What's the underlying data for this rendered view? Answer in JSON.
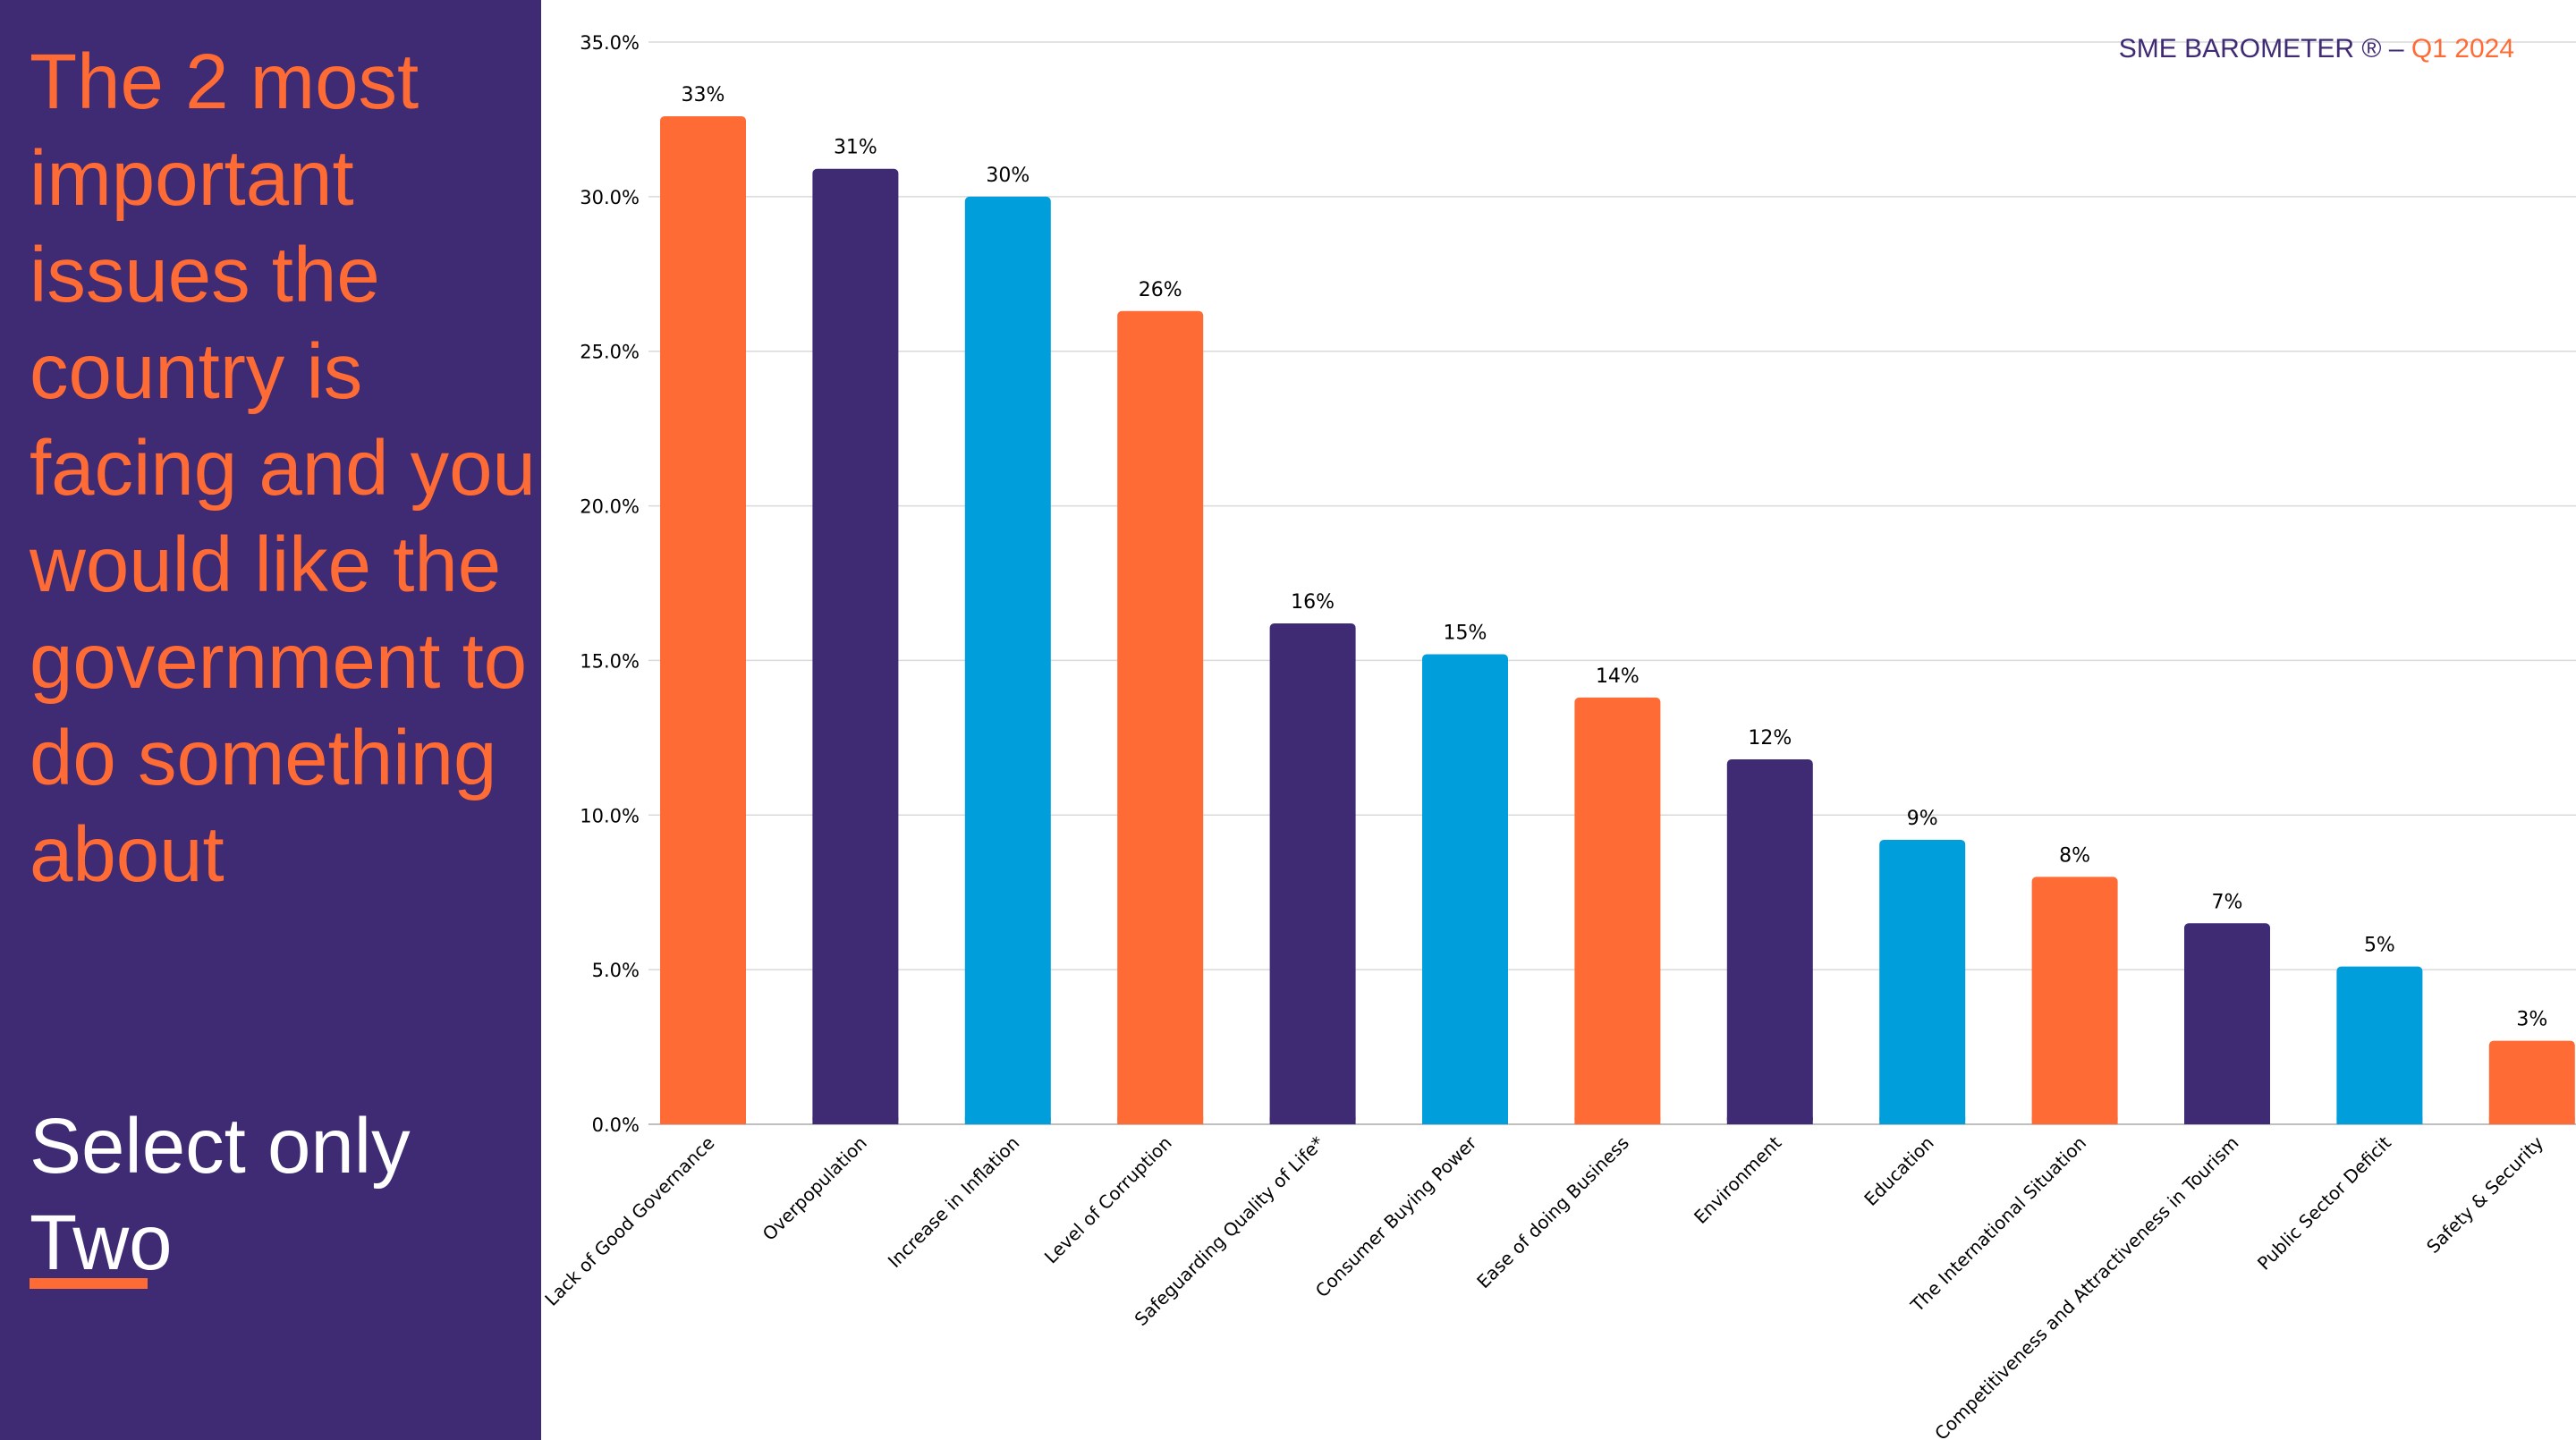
{
  "sidebar": {
    "question": "The 2 most important issues the country is facing and you would like the government to do something about",
    "instruction_line1": "Select only",
    "instruction_line2": "Two"
  },
  "brand": {
    "name": "SME BAROMETER ®",
    "separator": "–",
    "period": "Q1 2024"
  },
  "colors": {
    "panel": "#3F2A74",
    "orange": "#FF6B35",
    "purple": "#3F2A74",
    "blue": "#009EDB",
    "grid": "#D9D9D9"
  },
  "chart_data": {
    "type": "bar",
    "title": "",
    "xlabel": "",
    "ylabel": "",
    "ylim": [
      0,
      35
    ],
    "y_ticks": [
      "0.0%",
      "5.0%",
      "10.0%",
      "15.0%",
      "20.0%",
      "25.0%",
      "30.0%",
      "35.0%"
    ],
    "grid": "horizontal",
    "categories": [
      "Lack of Good Governance",
      "Overpopulation",
      "Increase in Inflation",
      "Level of Corruption",
      "Safeguarding Quality of Life*",
      "Consumer Buying Power",
      "Ease of doing Business",
      "Environment",
      "Education",
      "The International Situation",
      "Competitiveness and Attractiveness in Tourism",
      "Public Sector Deficit",
      "Safety & Security"
    ],
    "values": [
      32.6,
      30.9,
      30.0,
      26.3,
      16.2,
      15.2,
      13.8,
      11.8,
      9.2,
      8.0,
      6.5,
      5.1,
      2.7
    ],
    "data_labels": [
      "33%",
      "31%",
      "30%",
      "26%",
      "16%",
      "15%",
      "14%",
      "12%",
      "9%",
      "8%",
      "7%",
      "5%",
      "3%"
    ],
    "bar_colors": [
      "orange",
      "purple",
      "blue",
      "orange",
      "purple",
      "blue",
      "orange",
      "purple",
      "blue",
      "orange",
      "purple",
      "blue",
      "orange"
    ]
  }
}
